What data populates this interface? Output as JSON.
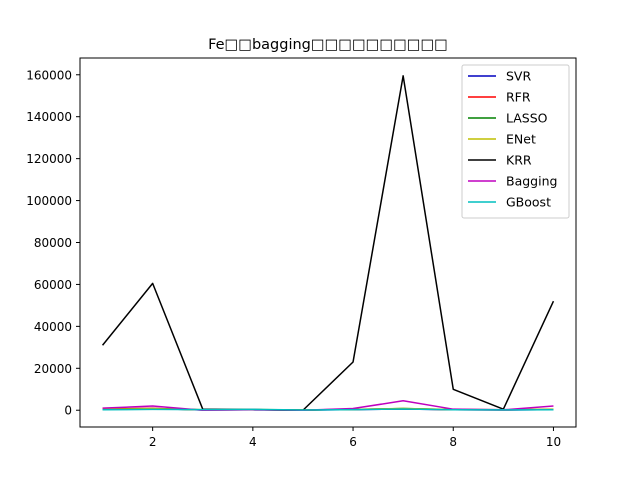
{
  "chart_data": {
    "type": "line",
    "title": "Fe□□bagging□□□□□□□□□□",
    "xlabel": "",
    "ylabel": "",
    "x": [
      1,
      2,
      3,
      4,
      5,
      6,
      7,
      8,
      9,
      10
    ],
    "xlim": [
      0.55,
      10.45
    ],
    "ylim": [
      -8000,
      168000
    ],
    "xticks": [
      2,
      4,
      6,
      8,
      10
    ],
    "yticks": [
      0,
      20000,
      40000,
      60000,
      80000,
      100000,
      120000,
      140000,
      160000
    ],
    "grid": false,
    "legend_position": "top-right",
    "series": [
      {
        "name": "SVR",
        "color": "#0000bf",
        "values": [
          500,
          800,
          100,
          200,
          50,
          300,
          600,
          200,
          100,
          300
        ]
      },
      {
        "name": "RFR",
        "color": "#ff0000",
        "values": [
          600,
          900,
          150,
          250,
          80,
          400,
          700,
          250,
          150,
          400
        ]
      },
      {
        "name": "LASSO",
        "color": "#008000",
        "values": [
          400,
          700,
          200,
          300,
          100,
          350,
          800,
          300,
          200,
          350
        ]
      },
      {
        "name": "ENet",
        "color": "#bfbf00",
        "values": [
          450,
          750,
          250,
          350,
          120,
          380,
          850,
          320,
          220,
          380
        ]
      },
      {
        "name": "KRR",
        "color": "#000000",
        "values": [
          31000,
          60500,
          500,
          300,
          0,
          23000,
          159500,
          10000,
          500,
          52000
        ]
      },
      {
        "name": "Bagging",
        "color": "#bf00bf",
        "values": [
          1000,
          2000,
          0,
          300,
          0,
          800,
          4500,
          500,
          200,
          2000
        ]
      },
      {
        "name": "GBoost",
        "color": "#00bfbf",
        "values": [
          200,
          400,
          300,
          400,
          100,
          300,
          600,
          250,
          150,
          250
        ]
      }
    ]
  }
}
